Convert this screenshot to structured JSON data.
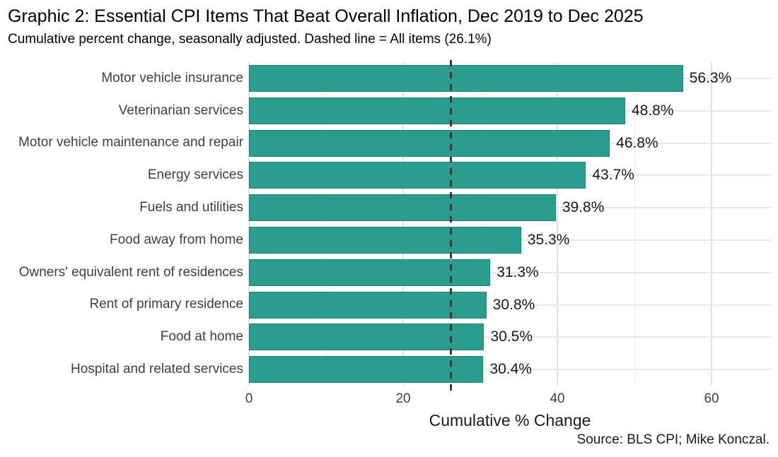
{
  "chart_data": {
    "type": "bar",
    "orientation": "horizontal",
    "title": "Graphic 2: Essential CPI Items That Beat Overall Inflation, Dec 2019 to Dec 2025",
    "subtitle": "Cumulative percent change, seasonally adjusted. Dashed line = All items (26.1%)",
    "categories": [
      "Motor vehicle insurance",
      "Veterinarian services",
      "Motor vehicle maintenance and repair",
      "Energy services",
      "Fuels and utilities",
      "Food away from home",
      "Owners' equivalent rent of residences",
      "Rent of primary residence",
      "Food at home",
      "Hospital and related services"
    ],
    "values": [
      56.3,
      48.8,
      46.8,
      43.7,
      39.8,
      35.3,
      31.3,
      30.8,
      30.5,
      30.4
    ],
    "value_labels": [
      "56.3%",
      "48.8%",
      "46.8%",
      "43.7%",
      "39.8%",
      "35.3%",
      "31.3%",
      "30.8%",
      "30.5%",
      "30.4%"
    ],
    "xlabel": "Cumulative % Change",
    "x_ticks": [
      0,
      20,
      40,
      60
    ],
    "x_minor_ticks": [
      10,
      30,
      50
    ],
    "xlim": [
      0,
      67.7
    ],
    "reference_line": {
      "value": 26.1,
      "label": "All items (26.1%)"
    },
    "source": "Source: BLS CPI; Mike Konczal.",
    "grid": true,
    "legend": "none",
    "colors": {
      "bar_fill": "#2a9d8f",
      "bar_border": "#1f8378",
      "reference_line": "#3b3b3b",
      "grid_major": "#e2e2e2",
      "grid_minor": "#f0f0f0",
      "text_dark": "#1a1a1a",
      "text_gray": "#404040"
    }
  }
}
